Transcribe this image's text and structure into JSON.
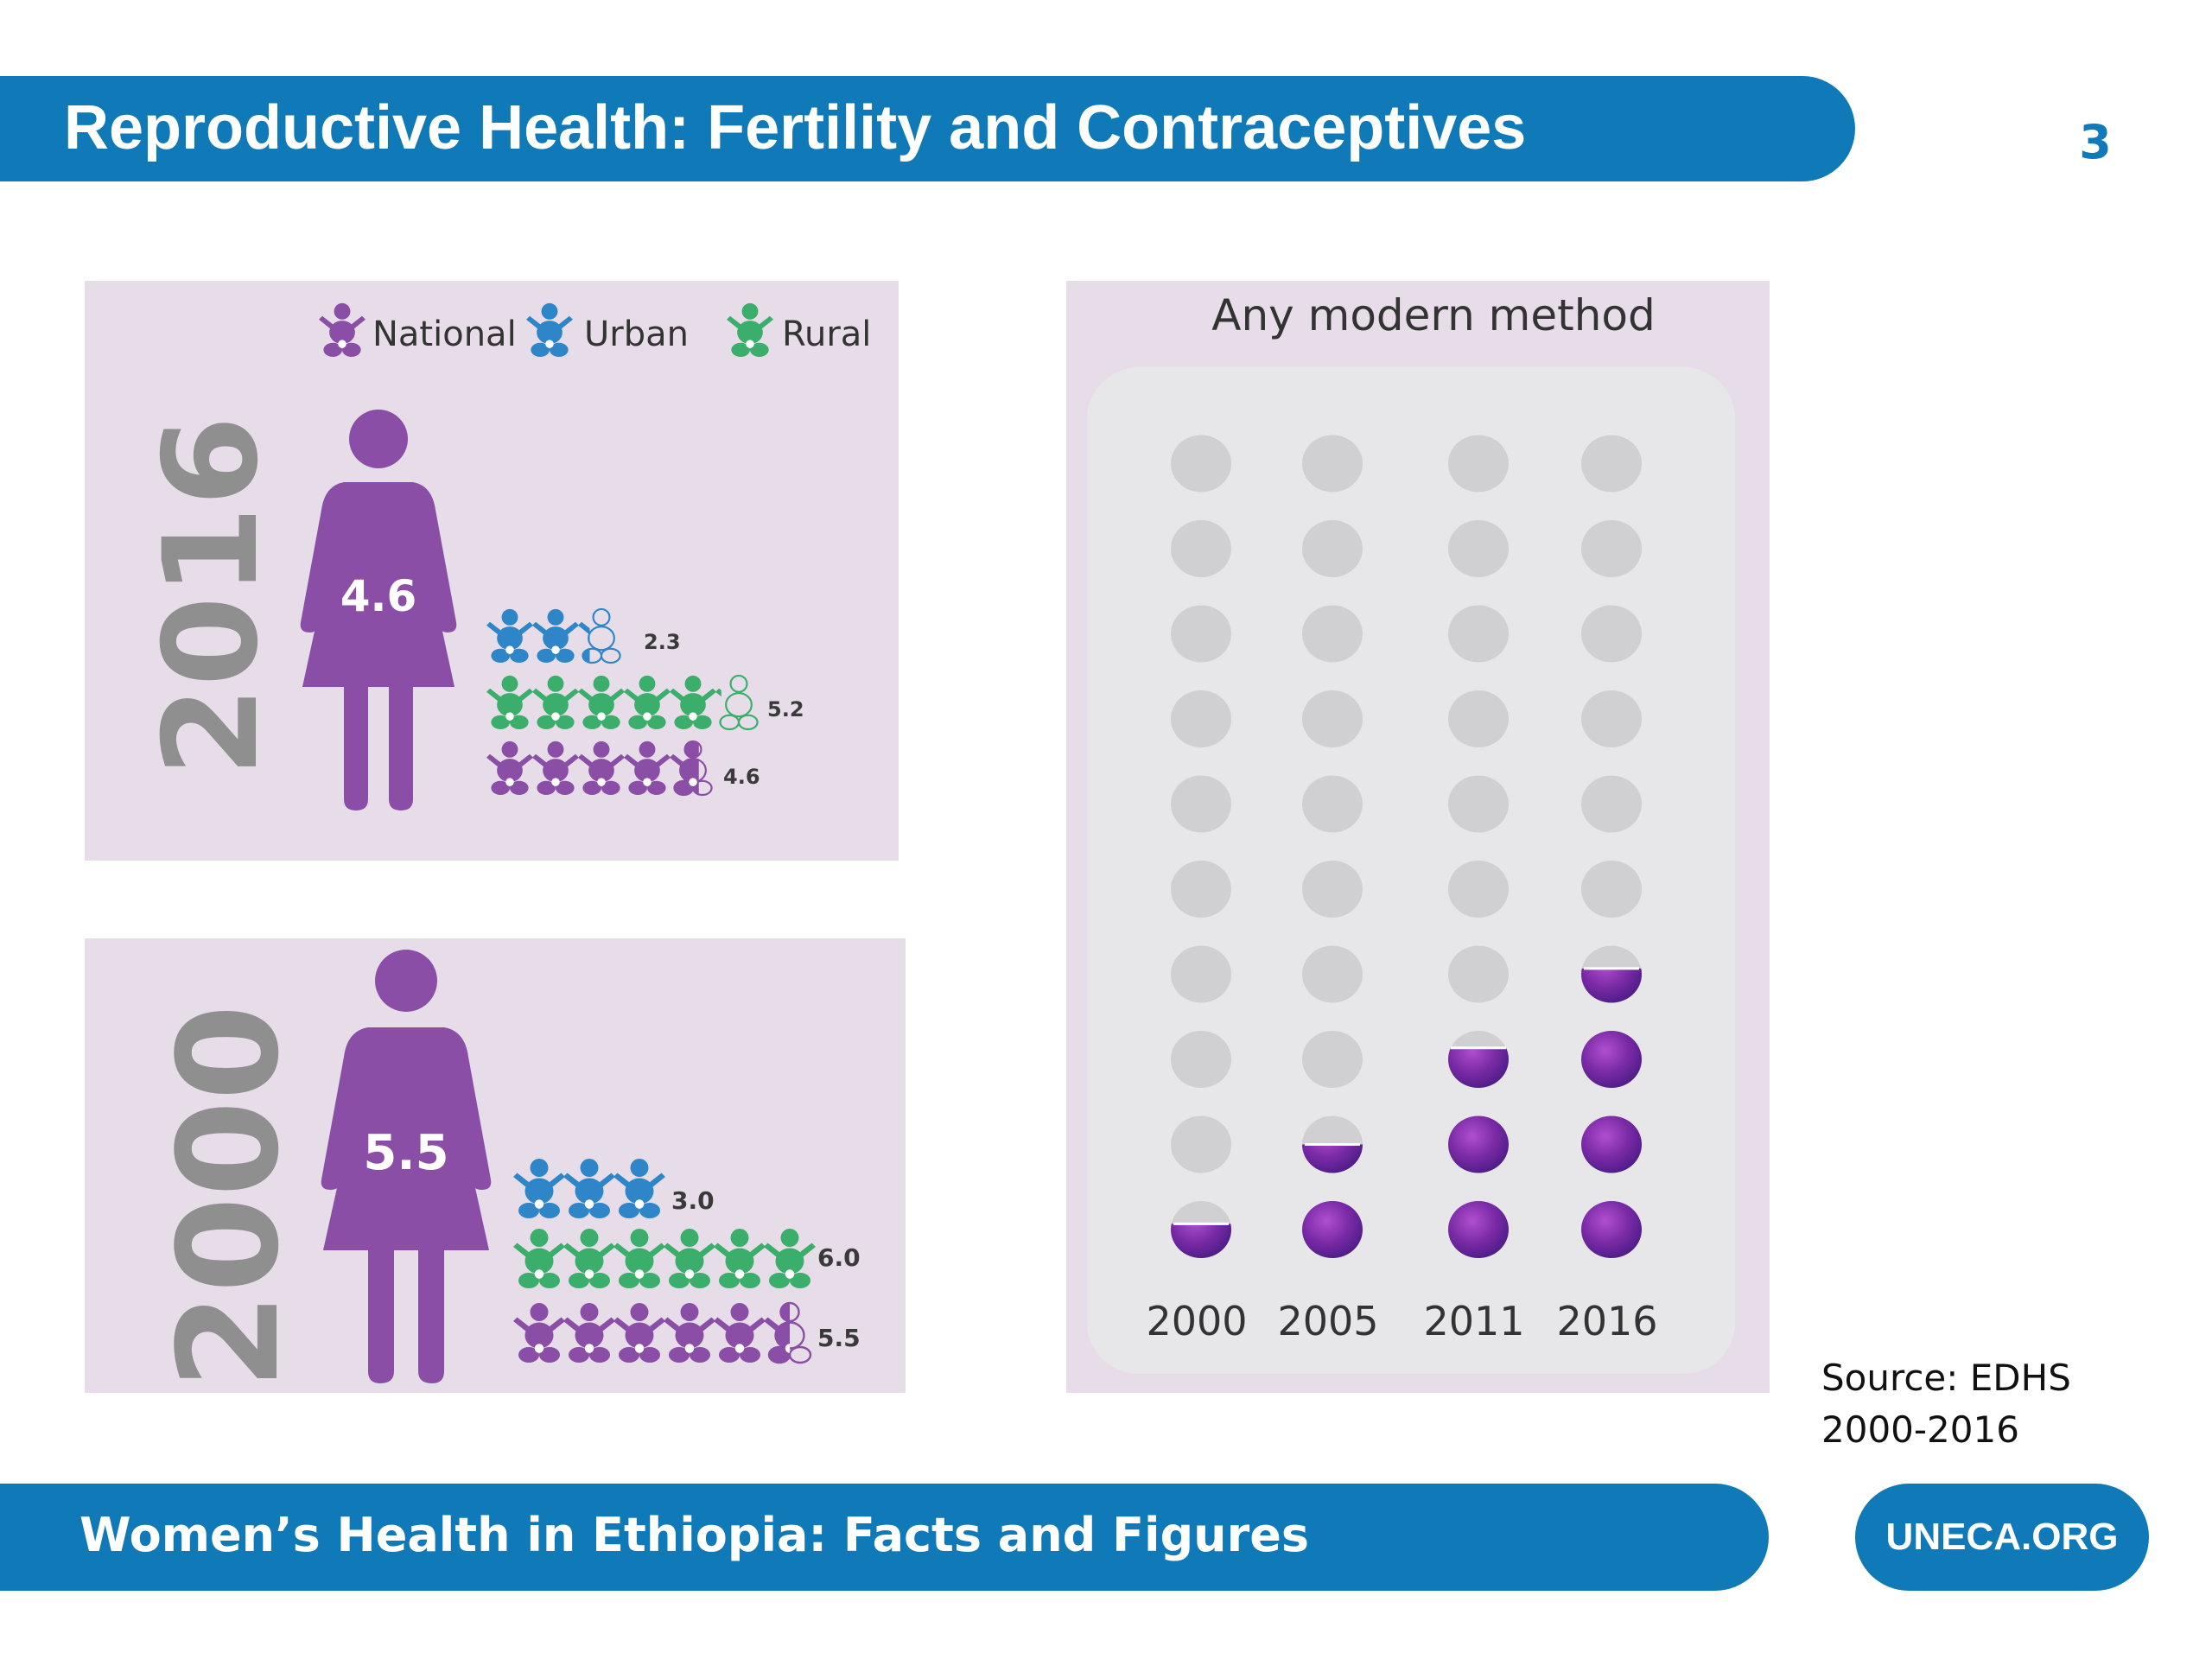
{
  "header": {
    "title": "Reproductive Health: Fertility and Contraceptives",
    "page_number": "3"
  },
  "legend": [
    {
      "label": "National",
      "icon": "baby-icon",
      "color": "#8b4ea6"
    },
    {
      "label": "Urban",
      "icon": "baby-icon",
      "color": "#2e86c9"
    },
    {
      "label": "Rural",
      "icon": "baby-icon",
      "color": "#3aae6a"
    }
  ],
  "colors": {
    "brand_blue": "#1079b7",
    "national": "#8b4ea6",
    "urban": "#2e86c9",
    "rural": "#3aae6a",
    "dot_empty": "#d0d0d2",
    "dot_fill": "#7e2ea8"
  },
  "fertility": {
    "year_2016": {
      "year": "2016",
      "national_value": "4.6",
      "urban": "2.3",
      "rural": "5.2",
      "national": "4.6"
    },
    "year_2000": {
      "year": "2000",
      "national_value": "5.5",
      "urban": "3.0",
      "rural": "6.0",
      "national": "5.5"
    }
  },
  "contraceptives": {
    "title": "Any modern method"
  },
  "source": {
    "line1": "Source: EDHS",
    "line2": "2000-2016"
  },
  "footer": {
    "title": "Women’s Health in Ethiopia: Facts and Figures",
    "link": "UNECA.ORG"
  },
  "chart_data": [
    {
      "type": "bar",
      "title": "",
      "categories": [
        "Urban",
        "Rural",
        "National"
      ],
      "series": [
        {
          "name": "2016",
          "values": [
            2.3,
            5.2,
            4.6
          ]
        },
        {
          "name": "2000",
          "values": [
            3.0,
            6.0,
            5.5
          ]
        }
      ]
    },
    {
      "type": "bar",
      "title": "Any modern method",
      "categories": [
        "2000",
        "2005",
        "2011",
        "2016"
      ],
      "values": [
        0.6,
        1.5,
        2.7,
        3.6
      ],
      "ylim": [
        0,
        10
      ]
    }
  ]
}
